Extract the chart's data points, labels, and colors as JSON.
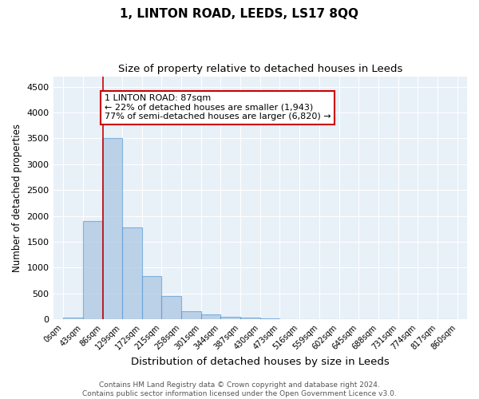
{
  "title": "1, LINTON ROAD, LEEDS, LS17 8QQ",
  "subtitle": "Size of property relative to detached houses in Leeds",
  "xlabel": "Distribution of detached houses by size in Leeds",
  "ylabel": "Number of detached properties",
  "bar_values": [
    30,
    1900,
    3500,
    1780,
    840,
    450,
    160,
    90,
    50,
    30,
    20,
    10,
    0,
    0,
    0,
    0,
    0,
    0,
    0,
    0
  ],
  "bin_edges": [
    0,
    43,
    86,
    129,
    172,
    215,
    258,
    301,
    344,
    387,
    430,
    473,
    516,
    559,
    602,
    645,
    688,
    731,
    774,
    817,
    860
  ],
  "tick_labels": [
    "0sqm",
    "43sqm",
    "86sqm",
    "129sqm",
    "172sqm",
    "215sqm",
    "258sqm",
    "301sqm",
    "344sqm",
    "387sqm",
    "430sqm",
    "473sqm",
    "516sqm",
    "559sqm",
    "602sqm",
    "645sqm",
    "688sqm",
    "731sqm",
    "774sqm",
    "817sqm",
    "860sqm"
  ],
  "bar_color": "#a8c4e0",
  "bar_edge_color": "#5b9bd5",
  "bar_alpha": 0.7,
  "vline_x": 87,
  "vline_color": "#cc0000",
  "annotation_line1": "1 LINTON ROAD: 87sqm",
  "annotation_line2": "← 22% of detached houses are smaller (1,943)",
  "annotation_line3": "77% of semi-detached houses are larger (6,820) →",
  "annotation_box_color": "#ffffff",
  "annotation_box_edge_color": "#cc0000",
  "ylim": [
    0,
    4700
  ],
  "yticks": [
    0,
    500,
    1000,
    1500,
    2000,
    2500,
    3000,
    3500,
    4000,
    4500
  ],
  "background_color": "#e8f0f8",
  "grid_color": "#ffffff",
  "footer_text": "Contains HM Land Registry data © Crown copyright and database right 2024.\nContains public sector information licensed under the Open Government Licence v3.0.",
  "title_fontsize": 11,
  "subtitle_fontsize": 9.5,
  "xlabel_fontsize": 9.5,
  "ylabel_fontsize": 8.5,
  "tick_fontsize": 7,
  "annotation_fontsize": 8,
  "footer_fontsize": 6.5
}
